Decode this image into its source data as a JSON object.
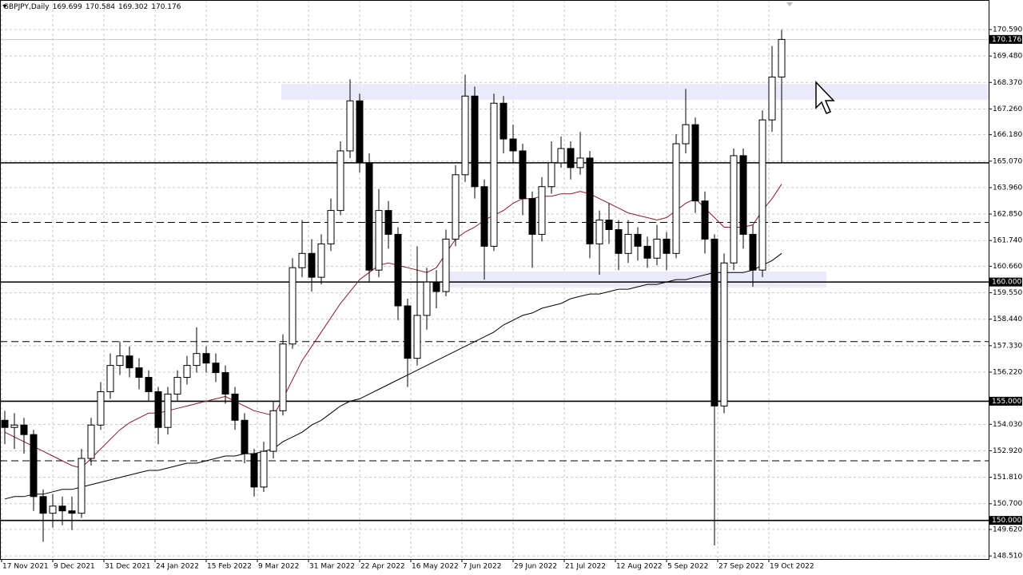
{
  "chart_data": {
    "type": "candlestick",
    "title": "GBPJPY,Daily",
    "quote": [
      169.699,
      170.584,
      169.302,
      170.176
    ],
    "x": [
      1,
      4,
      7,
      10,
      13,
      16,
      19,
      22,
      25,
      28,
      31,
      34,
      37,
      40,
      43,
      46,
      49,
      52,
      55,
      58,
      61,
      64,
      67,
      70,
      73,
      76,
      79,
      82,
      85,
      88,
      91,
      94,
      97,
      100,
      103,
      106,
      109,
      112,
      115,
      118,
      121,
      124,
      127,
      130,
      133,
      136,
      139,
      142,
      145,
      148,
      151,
      154,
      157,
      160,
      163,
      166,
      169,
      172,
      175,
      178,
      181,
      184,
      187,
      190,
      193,
      196,
      199,
      202,
      205,
      208,
      211,
      214,
      217,
      220,
      223,
      226,
      229,
      232,
      235,
      238,
      241,
      244
    ],
    "open": [
      154.2,
      153.9,
      154.0,
      153.6,
      151.0,
      150.3,
      150.6,
      150.4,
      150.3,
      152.6,
      154.0,
      155.4,
      156.5,
      156.9,
      156.4,
      156.0,
      155.4,
      153.9,
      155.3,
      156.0,
      156.5,
      157.0,
      156.6,
      156.2,
      155.3,
      154.2,
      152.8,
      151.4,
      152.9,
      154.6,
      157.4,
      160.6,
      161.2,
      160.2,
      161.6,
      163.0,
      165.5,
      167.6,
      165.0,
      160.5,
      163.0,
      162.0,
      159.0,
      156.8,
      158.6,
      160.0,
      159.6,
      161.8,
      164.5,
      167.8,
      164.0,
      161.5,
      167.5,
      166.0,
      165.5,
      163.5,
      162.0,
      164.0,
      165.0,
      165.6,
      164.8,
      165.2,
      161.6,
      162.6,
      162.2,
      161.2,
      162.0,
      161.5,
      161.0,
      161.8,
      161.2,
      165.8,
      166.6,
      163.4,
      161.8,
      154.8,
      160.8,
      165.3,
      162.0,
      160.5,
      166.8,
      168.6
    ],
    "high": [
      154.6,
      154.5,
      154.3,
      153.8,
      151.3,
      151.1,
      151.0,
      151.0,
      153.0,
      154.3,
      155.8,
      157.0,
      157.5,
      157.3,
      156.8,
      156.3,
      155.6,
      155.6,
      156.3,
      156.9,
      158.1,
      157.3,
      157.0,
      156.5,
      155.6,
      154.5,
      153.0,
      153.3,
      155.0,
      157.8,
      161.0,
      162.6,
      161.8,
      162.0,
      163.5,
      165.9,
      168.5,
      167.9,
      165.4,
      163.9,
      163.4,
      162.3,
      159.3,
      161.5,
      160.6,
      160.5,
      162.2,
      164.9,
      168.7,
      168.2,
      164.3,
      167.9,
      167.8,
      166.6,
      165.8,
      163.8,
      164.4,
      165.9,
      166.1,
      165.9,
      166.3,
      165.5,
      163.0,
      163.3,
      162.6,
      162.6,
      162.3,
      161.9,
      162.4,
      162.1,
      166.2,
      168.1,
      166.9,
      163.8,
      162.0,
      161.2,
      165.6,
      165.6,
      162.4,
      167.2,
      169.9,
      170.584
    ],
    "low": [
      153.2,
      153.0,
      152.8,
      150.4,
      149.1,
      149.7,
      149.8,
      149.6,
      150.1,
      152.3,
      153.8,
      155.1,
      156.1,
      156.0,
      155.5,
      155.0,
      153.2,
      153.6,
      155.0,
      155.7,
      156.2,
      156.2,
      155.8,
      154.9,
      153.8,
      152.4,
      151.0,
      151.2,
      152.6,
      154.4,
      157.2,
      160.2,
      159.6,
      159.9,
      161.3,
      162.8,
      165.2,
      164.6,
      160.0,
      160.2,
      161.4,
      158.4,
      155.6,
      156.5,
      158.0,
      158.9,
      159.4,
      161.5,
      164.2,
      163.5,
      160.1,
      161.3,
      165.4,
      165.0,
      162.8,
      160.6,
      161.7,
      163.7,
      164.8,
      164.3,
      164.5,
      161.0,
      160.3,
      161.6,
      160.5,
      160.8,
      160.9,
      160.6,
      160.7,
      160.5,
      161.0,
      165.4,
      162.9,
      161.2,
      148.95,
      154.5,
      160.5,
      161.4,
      159.8,
      160.2,
      166.3,
      165.0
    ],
    "close": [
      153.9,
      154.0,
      153.6,
      151.0,
      150.3,
      150.6,
      150.4,
      150.3,
      152.6,
      154.0,
      155.4,
      156.5,
      156.9,
      156.4,
      156.0,
      155.4,
      153.9,
      155.3,
      156.0,
      156.5,
      157.0,
      156.6,
      156.2,
      155.3,
      154.2,
      152.8,
      151.4,
      152.9,
      154.6,
      157.4,
      160.6,
      161.2,
      160.2,
      161.6,
      163.0,
      165.5,
      167.6,
      165.0,
      160.5,
      163.0,
      162.0,
      159.0,
      156.8,
      158.6,
      160.0,
      159.6,
      161.8,
      164.5,
      167.8,
      164.0,
      161.5,
      167.5,
      166.0,
      165.5,
      163.5,
      162.0,
      164.0,
      165.0,
      165.6,
      164.8,
      165.2,
      161.6,
      162.6,
      162.2,
      161.2,
      162.0,
      161.5,
      161.0,
      161.8,
      161.2,
      165.8,
      166.6,
      163.4,
      161.8,
      154.8,
      160.8,
      165.3,
      162.0,
      160.5,
      166.8,
      168.6,
      170.176
    ],
    "up_color": "#ffffff",
    "down_color": "#000000",
    "series": [
      {
        "color": "#8b1a2a",
        "values": [
          153.7,
          153.5,
          153.3,
          153.1,
          152.9,
          152.7,
          152.5,
          152.3,
          152.2,
          152.6,
          153.0,
          153.4,
          153.8,
          154.1,
          154.3,
          154.5,
          154.5,
          154.6,
          154.7,
          154.8,
          154.9,
          155.0,
          155.1,
          155.2,
          155.0,
          154.8,
          154.6,
          154.5,
          154.4,
          155.1,
          155.9,
          156.7,
          157.3,
          157.9,
          158.5,
          159.1,
          159.6,
          160.1,
          160.4,
          160.7,
          160.8,
          160.7,
          160.6,
          160.5,
          160.4,
          160.6,
          161.2,
          161.8,
          162.1,
          162.3,
          162.6,
          162.8,
          163.0,
          163.3,
          163.5,
          163.5,
          163.6,
          163.6,
          163.7,
          163.7,
          163.8,
          163.7,
          163.5,
          163.3,
          163.1,
          162.9,
          162.8,
          162.7,
          162.6,
          162.7,
          163.0,
          163.3,
          163.5,
          163.1,
          162.7,
          162.3,
          162.3,
          162.3,
          162.4,
          163.0,
          163.5,
          164.1
        ]
      },
      {
        "color": "#000000",
        "values": [
          150.9,
          151.0,
          151.0,
          151.1,
          151.1,
          151.2,
          151.3,
          151.3,
          151.4,
          151.5,
          151.6,
          151.7,
          151.8,
          151.9,
          152.0,
          152.1,
          152.1,
          152.2,
          152.3,
          152.4,
          152.4,
          152.5,
          152.6,
          152.7,
          152.7,
          152.8,
          152.8,
          152.9,
          153.0,
          153.3,
          153.5,
          153.7,
          154.0,
          154.2,
          154.5,
          154.8,
          155.0,
          155.1,
          155.3,
          155.5,
          155.7,
          155.9,
          156.1,
          156.3,
          156.5,
          156.7,
          156.9,
          157.1,
          157.3,
          157.5,
          157.7,
          157.9,
          158.2,
          158.4,
          158.6,
          158.7,
          158.9,
          159.0,
          159.1,
          159.3,
          159.4,
          159.5,
          159.5,
          159.6,
          159.7,
          159.7,
          159.8,
          159.9,
          159.9,
          160.0,
          160.1,
          160.1,
          160.2,
          160.3,
          160.4,
          160.4,
          160.4,
          160.4,
          160.5,
          160.7,
          160.9,
          161.2
        ]
      }
    ],
    "xlim": [
      -0.5,
      308.75
    ],
    "ylim": [
      148.38,
      171.83
    ],
    "xticks": [
      {
        "value": 0,
        "label": "17 Nov 2021"
      },
      {
        "value": 16,
        "label": "9 Dec 2021"
      },
      {
        "value": 32,
        "label": "31 Dec 2021"
      },
      {
        "value": 48,
        "label": "24 Jan 2022"
      },
      {
        "value": 64,
        "label": "15 Feb 2022"
      },
      {
        "value": 80,
        "label": "9 Mar 2022"
      },
      {
        "value": 96,
        "label": "31 Mar 2022"
      },
      {
        "value": 112,
        "label": "22 Apr 2022"
      },
      {
        "value": 128,
        "label": "16 May 2022"
      },
      {
        "value": 144,
        "label": "7 Jun 2022"
      },
      {
        "value": 160,
        "label": "29 Jun 2022"
      },
      {
        "value": 176,
        "label": "21 Jul 2022"
      },
      {
        "value": 192,
        "label": "12 Aug 2022"
      },
      {
        "value": 208,
        "label": "5 Sep 2022"
      },
      {
        "value": 224,
        "label": "27 Sep 2022"
      },
      {
        "value": 240,
        "label": "19 Oct 2022"
      }
    ],
    "yticks": [
      {
        "value": 170.59,
        "label": "170.590"
      },
      {
        "value": 169.48,
        "label": "169.480"
      },
      {
        "value": 168.37,
        "label": "168.370"
      },
      {
        "value": 167.26,
        "label": "167.260"
      },
      {
        "value": 166.18,
        "label": "166.180"
      },
      {
        "value": 165.07,
        "label": "165.070"
      },
      {
        "value": 163.96,
        "label": "163.960"
      },
      {
        "value": 162.85,
        "label": "162.850"
      },
      {
        "value": 161.74,
        "label": "161.740"
      },
      {
        "value": 160.66,
        "label": "160.660"
      },
      {
        "value": 159.55,
        "label": "159.550"
      },
      {
        "value": 158.44,
        "label": "158.440"
      },
      {
        "value": 157.33,
        "label": "157.330"
      },
      {
        "value": 156.22,
        "label": "156.220"
      },
      {
        "value": 154.03,
        "label": "154.030"
      },
      {
        "value": 152.92,
        "label": "152.920"
      },
      {
        "value": 151.81,
        "label": "151.810"
      },
      {
        "value": 150.7,
        "label": "150.700"
      },
      {
        "value": 149.62,
        "label": "149.620"
      },
      {
        "value": 148.51,
        "label": "148.510"
      }
    ],
    "grid": true,
    "levels": [
      {
        "value": 165,
        "style": "solid"
      },
      {
        "value": 160,
        "style": "solid",
        "label": "160.000"
      },
      {
        "value": 155,
        "style": "solid",
        "label": "155.000"
      },
      {
        "value": 150,
        "style": "solid",
        "label": "150.000"
      },
      {
        "value": 162.5,
        "style": "dashed"
      },
      {
        "value": 157.5,
        "style": "dashed"
      },
      {
        "value": 152.5,
        "style": "dashed"
      }
    ],
    "zones": [
      {
        "from": 167.64,
        "to": 168.31,
        "x_start": 87.5,
        "color": "#e6e6fa"
      },
      {
        "from": 159.77,
        "to": 160.44,
        "x_start": 138.5,
        "x_end": 258,
        "color": "#e6e6fa"
      }
    ],
    "current_price": {
      "value": 170.176,
      "label": "170.176"
    }
  }
}
